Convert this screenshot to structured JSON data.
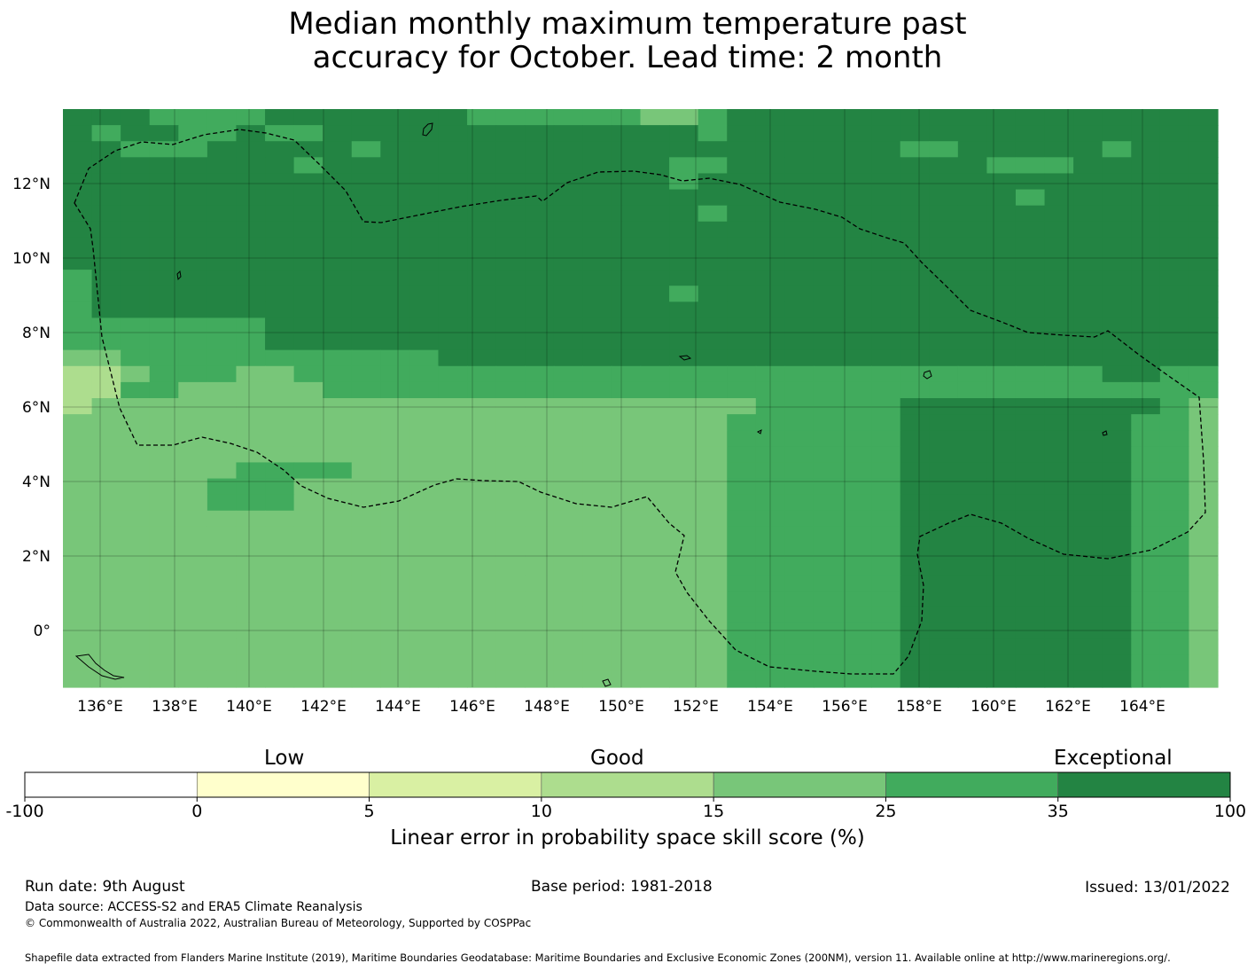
{
  "title_line1": "Median monthly maximum temperature past",
  "title_line2": "accuracy for October. Lead time: 2 month",
  "map": {
    "lon_labels": [
      "136°E",
      "138°E",
      "140°E",
      "142°E",
      "144°E",
      "146°E",
      "148°E",
      "150°E",
      "152°E",
      "154°E",
      "156°E",
      "158°E",
      "160°E",
      "162°E",
      "164°E"
    ],
    "lat_labels": [
      "12°N",
      "10°N",
      "8°N",
      "6°N",
      "4°N",
      "2°N",
      "0°"
    ],
    "colors": [
      "#ffffff",
      "#ffffcc",
      "#d9f0a3",
      "#addd8e",
      "#78c679",
      "#41ab5d",
      "#238443"
    ],
    "grid_rows": [
      "6665555666666655555544566666666666666666",
      "6566556556666666666666566666666666666666",
      "6655566666566666666666666666655666665666",
      "6666666656666666666665566666666655566666",
      "6666666666666666666665666666666666666666",
      "6666666666666666666666666666666665666666",
      "6666666666666666666666566666666666666666",
      "6666666666666666666666666666666666666666",
      "6666666666666666666666666666666666666666",
      "6666666666666666666666666666666666666666",
      "5666666666666666666666666666666666666666",
      "5666666666666666666665666666666666666666",
      "5666666666666666666666666666666666666666",
      "5555555666666666666666666666666666666666",
      "5555555666666666666666666666666666666666",
      "4455555555555666666666666666666666666666",
      "3345554455555555555555555555555555556655",
      "3355444445555555555555555555555555555555",
      "3444444444444444444444445555566666666654",
      "4444444444444444444444455555566666666554",
      "4444444444444444444444455555566666666554",
      "4444444444444444444444455555566666666554",
      "4444445555444444444444455555566666666554",
      "4444455544444444444444455555566666666554",
      "4444455544444444444444455555566666666554",
      "4444444444444444444444455555566666666554",
      "4444444444444444444444455555566666666554",
      "4444444444444444444444455555566666666554",
      "4444444444444444444444455555566666666554",
      "4444444444444444444444455555566666666554",
      "4444444444444444444444455555566666666554",
      "4444444444444444444444455555566666666554",
      "4444444444444444444444455555566666666554",
      "4444444444444444444444455555566666666554",
      "4444444444444444444444455555566666666554",
      "4444444444444444444444455555566666666554"
    ]
  },
  "colorbar": {
    "category_low": "Low",
    "category_good": "Good",
    "category_exceptional": "Exceptional",
    "ticks": [
      "-100",
      "0",
      "5",
      "10",
      "15",
      "25",
      "35",
      "100"
    ],
    "colors": [
      "#ffffff",
      "#ffffcc",
      "#d9f0a3",
      "#addd8e",
      "#78c679",
      "#41ab5d",
      "#238443"
    ],
    "title": "Linear error in probability space skill score (%)"
  },
  "footer": {
    "run_date": "Run date: 9th August",
    "base_period": "Base period: 1981-2018",
    "issued": "Issued: 13/01/2022",
    "data_source": "Data source: ACCESS-S2 and ERA5 Climate Reanalysis",
    "copyright": "© Commonwealth of Australia 2022, Australian Bureau of Meteorology, Supported by COSPPac",
    "shapefile": "Shapefile data extracted from Flanders Marine Institute (2019), Maritime Boundaries Geodatabase: Maritime Boundaries and Exclusive Economic Zones (200NM), version 11. Available online at http://www.marineregions.org/."
  }
}
